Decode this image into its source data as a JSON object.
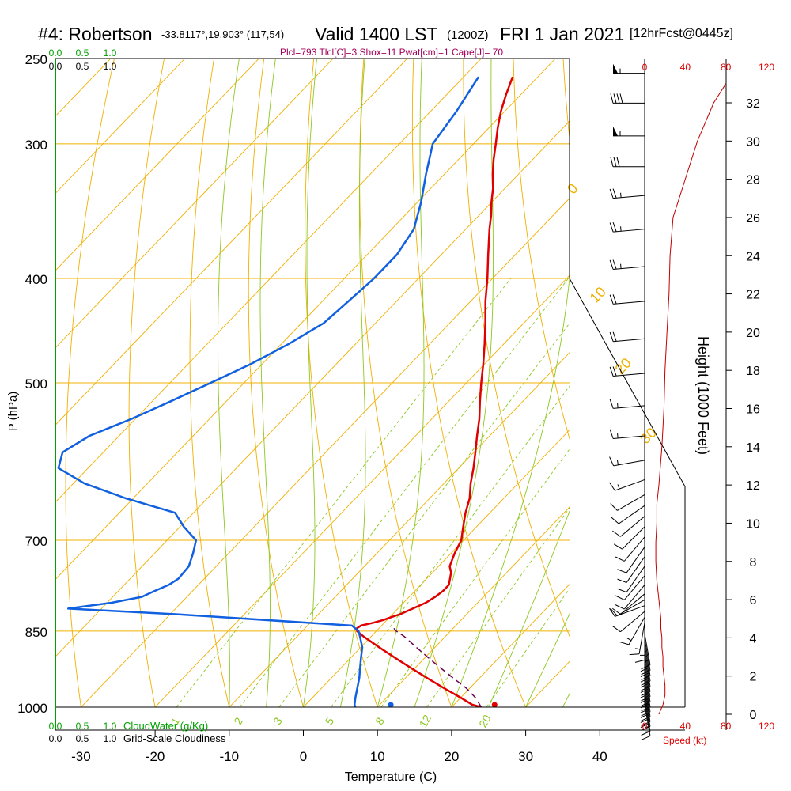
{
  "header": {
    "station": "#4: Robertson",
    "location": "-33.8117°,19.903° (117,54)",
    "valid": "Valid 1400 LST",
    "valid_z": "(1200Z)",
    "date": "FRI 1 Jan 2021",
    "forecast": "[12hrFcst@0445z]"
  },
  "indices": "Plcl=793 Tlcl[C]=3 Shox=11 Pwat[cm]=1 Cape[J]= 70",
  "colors": {
    "isotherm": "#f0b000",
    "dry_adiabat": "#f0b000",
    "moist_adiabat": "#8cc820",
    "mixing_ratio": "#8cc820",
    "temperature": "#e00000",
    "dewpoint": "#1060e0",
    "parcel": "#6a0050",
    "wind_speed": "#c00000",
    "cloud": "#00a000",
    "indices_text": "#a0005a"
  },
  "chart_data": {
    "type": "line",
    "title": "#4: Robertson",
    "xlabel": "Temperature (C)",
    "ylabel": "P (hPa)",
    "y2label": "Height (1000 Feet)",
    "xlim": [
      -35,
      35
    ],
    "ylim": [
      1000,
      250
    ],
    "x_ticks": [
      "-30",
      "-20",
      "-10",
      "0",
      "10",
      "20",
      "30",
      "40"
    ],
    "x_tick_values": [
      -30,
      -20,
      -10,
      0,
      10,
      20,
      30,
      40
    ],
    "pressure_levels": [
      250,
      300,
      400,
      500,
      700,
      850,
      1000
    ],
    "pressure_labels": [
      "250",
      "300",
      "400",
      "500",
      "700",
      "850",
      "1000"
    ],
    "height_ticks": [
      "0",
      "2",
      "4",
      "6",
      "8",
      "10",
      "12",
      "14",
      "16",
      "18",
      "20",
      "22",
      "24",
      "26",
      "28",
      "30",
      "32"
    ],
    "height_tick_values": [
      0,
      2,
      4,
      6,
      8,
      10,
      12,
      14,
      16,
      18,
      20,
      22,
      24,
      26,
      28,
      30,
      32
    ],
    "speed_ticks": [
      "0",
      "40",
      "80",
      "120"
    ],
    "speed_label": "Speed (kt)",
    "cloud_scale": [
      "0.0",
      "0.5",
      "1.0"
    ],
    "cloud_water_label": "CloudWater (g/Kg)",
    "cloudiness_label": "Grid-Scale Cloudiness",
    "isotherm_labels": [
      "10",
      "0",
      "-10",
      "-20",
      "-30"
    ],
    "isotherm_label_values": [
      10,
      0,
      -10,
      -20,
      -30
    ],
    "dry_adiabat_labels": [
      "0",
      "10",
      "20",
      "30"
    ],
    "mixing_ratio_labels": [
      "1",
      "2",
      "3",
      "5",
      "8",
      "12",
      "20"
    ],
    "series": [
      {
        "name": "Temperature",
        "pressure": [
          1000,
          995,
          980,
          960,
          940,
          920,
          900,
          880,
          860,
          850,
          845,
          840,
          835,
          830,
          825,
          820,
          810,
          800,
          790,
          780,
          770,
          750,
          740,
          720,
          700,
          680,
          660,
          640,
          620,
          600,
          580,
          560,
          540,
          520,
          500,
          480,
          460,
          440,
          420,
          400,
          380,
          360,
          350,
          340,
          330,
          320,
          310,
          300,
          290,
          280,
          270,
          260
        ],
        "values": [
          24.0,
          22.5,
          20.0,
          16.5,
          13.0,
          9.5,
          6.0,
          2.5,
          -1.0,
          -2.6,
          -3.0,
          -2.8,
          -1.5,
          -0.5,
          0.2,
          1.0,
          2.0,
          3.0,
          3.5,
          3.8,
          3.8,
          2.5,
          1.5,
          0.5,
          -0.3,
          -1.8,
          -3.3,
          -4.6,
          -6.4,
          -8.0,
          -9.8,
          -11.7,
          -13.6,
          -15.8,
          -18.0,
          -20.2,
          -22.6,
          -25.2,
          -28.0,
          -30.7,
          -33.7,
          -36.8,
          -38.3,
          -40.0,
          -41.6,
          -43.5,
          -45.3,
          -47.0,
          -48.8,
          -50.5,
          -52.0,
          -53.4
        ]
      },
      {
        "name": "Dew point",
        "pressure": [
          1000,
          995,
          980,
          960,
          940,
          920,
          900,
          880,
          860,
          850,
          840,
          820,
          810,
          800,
          790,
          780,
          770,
          760,
          740,
          720,
          700,
          680,
          660,
          640,
          620,
          600,
          580,
          560,
          540,
          520,
          500,
          480,
          460,
          440,
          420,
          400,
          380,
          360,
          340,
          320,
          300,
          280,
          260
        ],
        "values": [
          7.0,
          6.6,
          5.8,
          4.8,
          3.8,
          2.6,
          1.4,
          0.2,
          -1.5,
          -2.4,
          -4.0,
          -29.0,
          -44.5,
          -39.4,
          -36.1,
          -35.1,
          -34.0,
          -33.5,
          -33.7,
          -34.8,
          -36.1,
          -39.5,
          -42.5,
          -51.0,
          -58.5,
          -64.0,
          -65.5,
          -64.0,
          -60.5,
          -57.5,
          -54.5,
          -51.5,
          -49.0,
          -47.0,
          -46.5,
          -46.0,
          -46.0,
          -47.0,
          -49.5,
          -52.5,
          -55.5,
          -56.5,
          -58.0
        ]
      },
      {
        "name": "Parcel",
        "pressure": [
          1000,
          980,
          960,
          940,
          920,
          900,
          880,
          860,
          850,
          845
        ],
        "values": [
          24.0,
          22.0,
          19.5,
          16.5,
          13.5,
          10.5,
          7.5,
          4.5,
          2.7,
          2.0
        ]
      }
    ],
    "surface_temperature": 25.5,
    "surface_dewpoint": 11.5,
    "wind_speed_profile": {
      "height_kft": [
        0,
        0.5,
        1,
        1.5,
        2,
        2.5,
        3,
        3.5,
        4,
        4.5,
        5,
        6,
        7,
        8,
        9,
        10,
        11,
        12,
        14,
        16,
        18,
        20,
        22,
        24,
        26,
        28,
        30,
        32,
        33
      ],
      "speed_kt": [
        14,
        18,
        20,
        20,
        19,
        18,
        18,
        17,
        17,
        16,
        16,
        14,
        12,
        11,
        11,
        12,
        12,
        14,
        17,
        19,
        20,
        22,
        24,
        25,
        28,
        40,
        52,
        68,
        80
      ]
    },
    "wind_barbs": [
      {
        "pressure": 995,
        "direction": 170,
        "speed": 15
      },
      {
        "pressure": 985,
        "direction": 170,
        "speed": 15
      },
      {
        "pressure": 975,
        "direction": 170,
        "speed": 20
      },
      {
        "pressure": 965,
        "direction": 170,
        "speed": 20
      },
      {
        "pressure": 955,
        "direction": 170,
        "speed": 20
      },
      {
        "pressure": 945,
        "direction": 170,
        "speed": 20
      },
      {
        "pressure": 935,
        "direction": 170,
        "speed": 20
      },
      {
        "pressure": 925,
        "direction": 170,
        "speed": 20
      },
      {
        "pressure": 915,
        "direction": 170,
        "speed": 20
      },
      {
        "pressure": 905,
        "direction": 170,
        "speed": 20
      },
      {
        "pressure": 895,
        "direction": 170,
        "speed": 20
      },
      {
        "pressure": 885,
        "direction": 170,
        "speed": 20
      },
      {
        "pressure": 875,
        "direction": 170,
        "speed": 20
      },
      {
        "pressure": 865,
        "direction": 170,
        "speed": 20
      },
      {
        "pressure": 855,
        "direction": 170,
        "speed": 15
      },
      {
        "pressure": 845,
        "direction": 180,
        "speed": 15
      },
      {
        "pressure": 835,
        "direction": 190,
        "speed": 15
      },
      {
        "pressure": 825,
        "direction": 210,
        "speed": 15
      },
      {
        "pressure": 815,
        "direction": 230,
        "speed": 10
      },
      {
        "pressure": 805,
        "direction": 250,
        "speed": 10
      },
      {
        "pressure": 795,
        "direction": 240,
        "speed": 10
      },
      {
        "pressure": 785,
        "direction": 230,
        "speed": 10
      },
      {
        "pressure": 770,
        "direction": 220,
        "speed": 10
      },
      {
        "pressure": 755,
        "direction": 220,
        "speed": 10
      },
      {
        "pressure": 740,
        "direction": 215,
        "speed": 10
      },
      {
        "pressure": 725,
        "direction": 215,
        "speed": 10
      },
      {
        "pressure": 710,
        "direction": 215,
        "speed": 10
      },
      {
        "pressure": 695,
        "direction": 220,
        "speed": 10
      },
      {
        "pressure": 680,
        "direction": 225,
        "speed": 10
      },
      {
        "pressure": 665,
        "direction": 230,
        "speed": 10
      },
      {
        "pressure": 650,
        "direction": 235,
        "speed": 10
      },
      {
        "pressure": 635,
        "direction": 240,
        "speed": 10
      },
      {
        "pressure": 615,
        "direction": 250,
        "speed": 15
      },
      {
        "pressure": 590,
        "direction": 260,
        "speed": 15
      },
      {
        "pressure": 560,
        "direction": 265,
        "speed": 15
      },
      {
        "pressure": 525,
        "direction": 265,
        "speed": 15
      },
      {
        "pressure": 490,
        "direction": 265,
        "speed": 20
      },
      {
        "pressure": 455,
        "direction": 265,
        "speed": 20
      },
      {
        "pressure": 420,
        "direction": 265,
        "speed": 20
      },
      {
        "pressure": 390,
        "direction": 265,
        "speed": 25
      },
      {
        "pressure": 360,
        "direction": 265,
        "speed": 25
      },
      {
        "pressure": 335,
        "direction": 265,
        "speed": 25
      },
      {
        "pressure": 315,
        "direction": 270,
        "speed": 30
      },
      {
        "pressure": 295,
        "direction": 270,
        "speed": 55
      },
      {
        "pressure": 275,
        "direction": 270,
        "speed": 40
      },
      {
        "pressure": 258,
        "direction": 270,
        "speed": 55
      }
    ]
  }
}
